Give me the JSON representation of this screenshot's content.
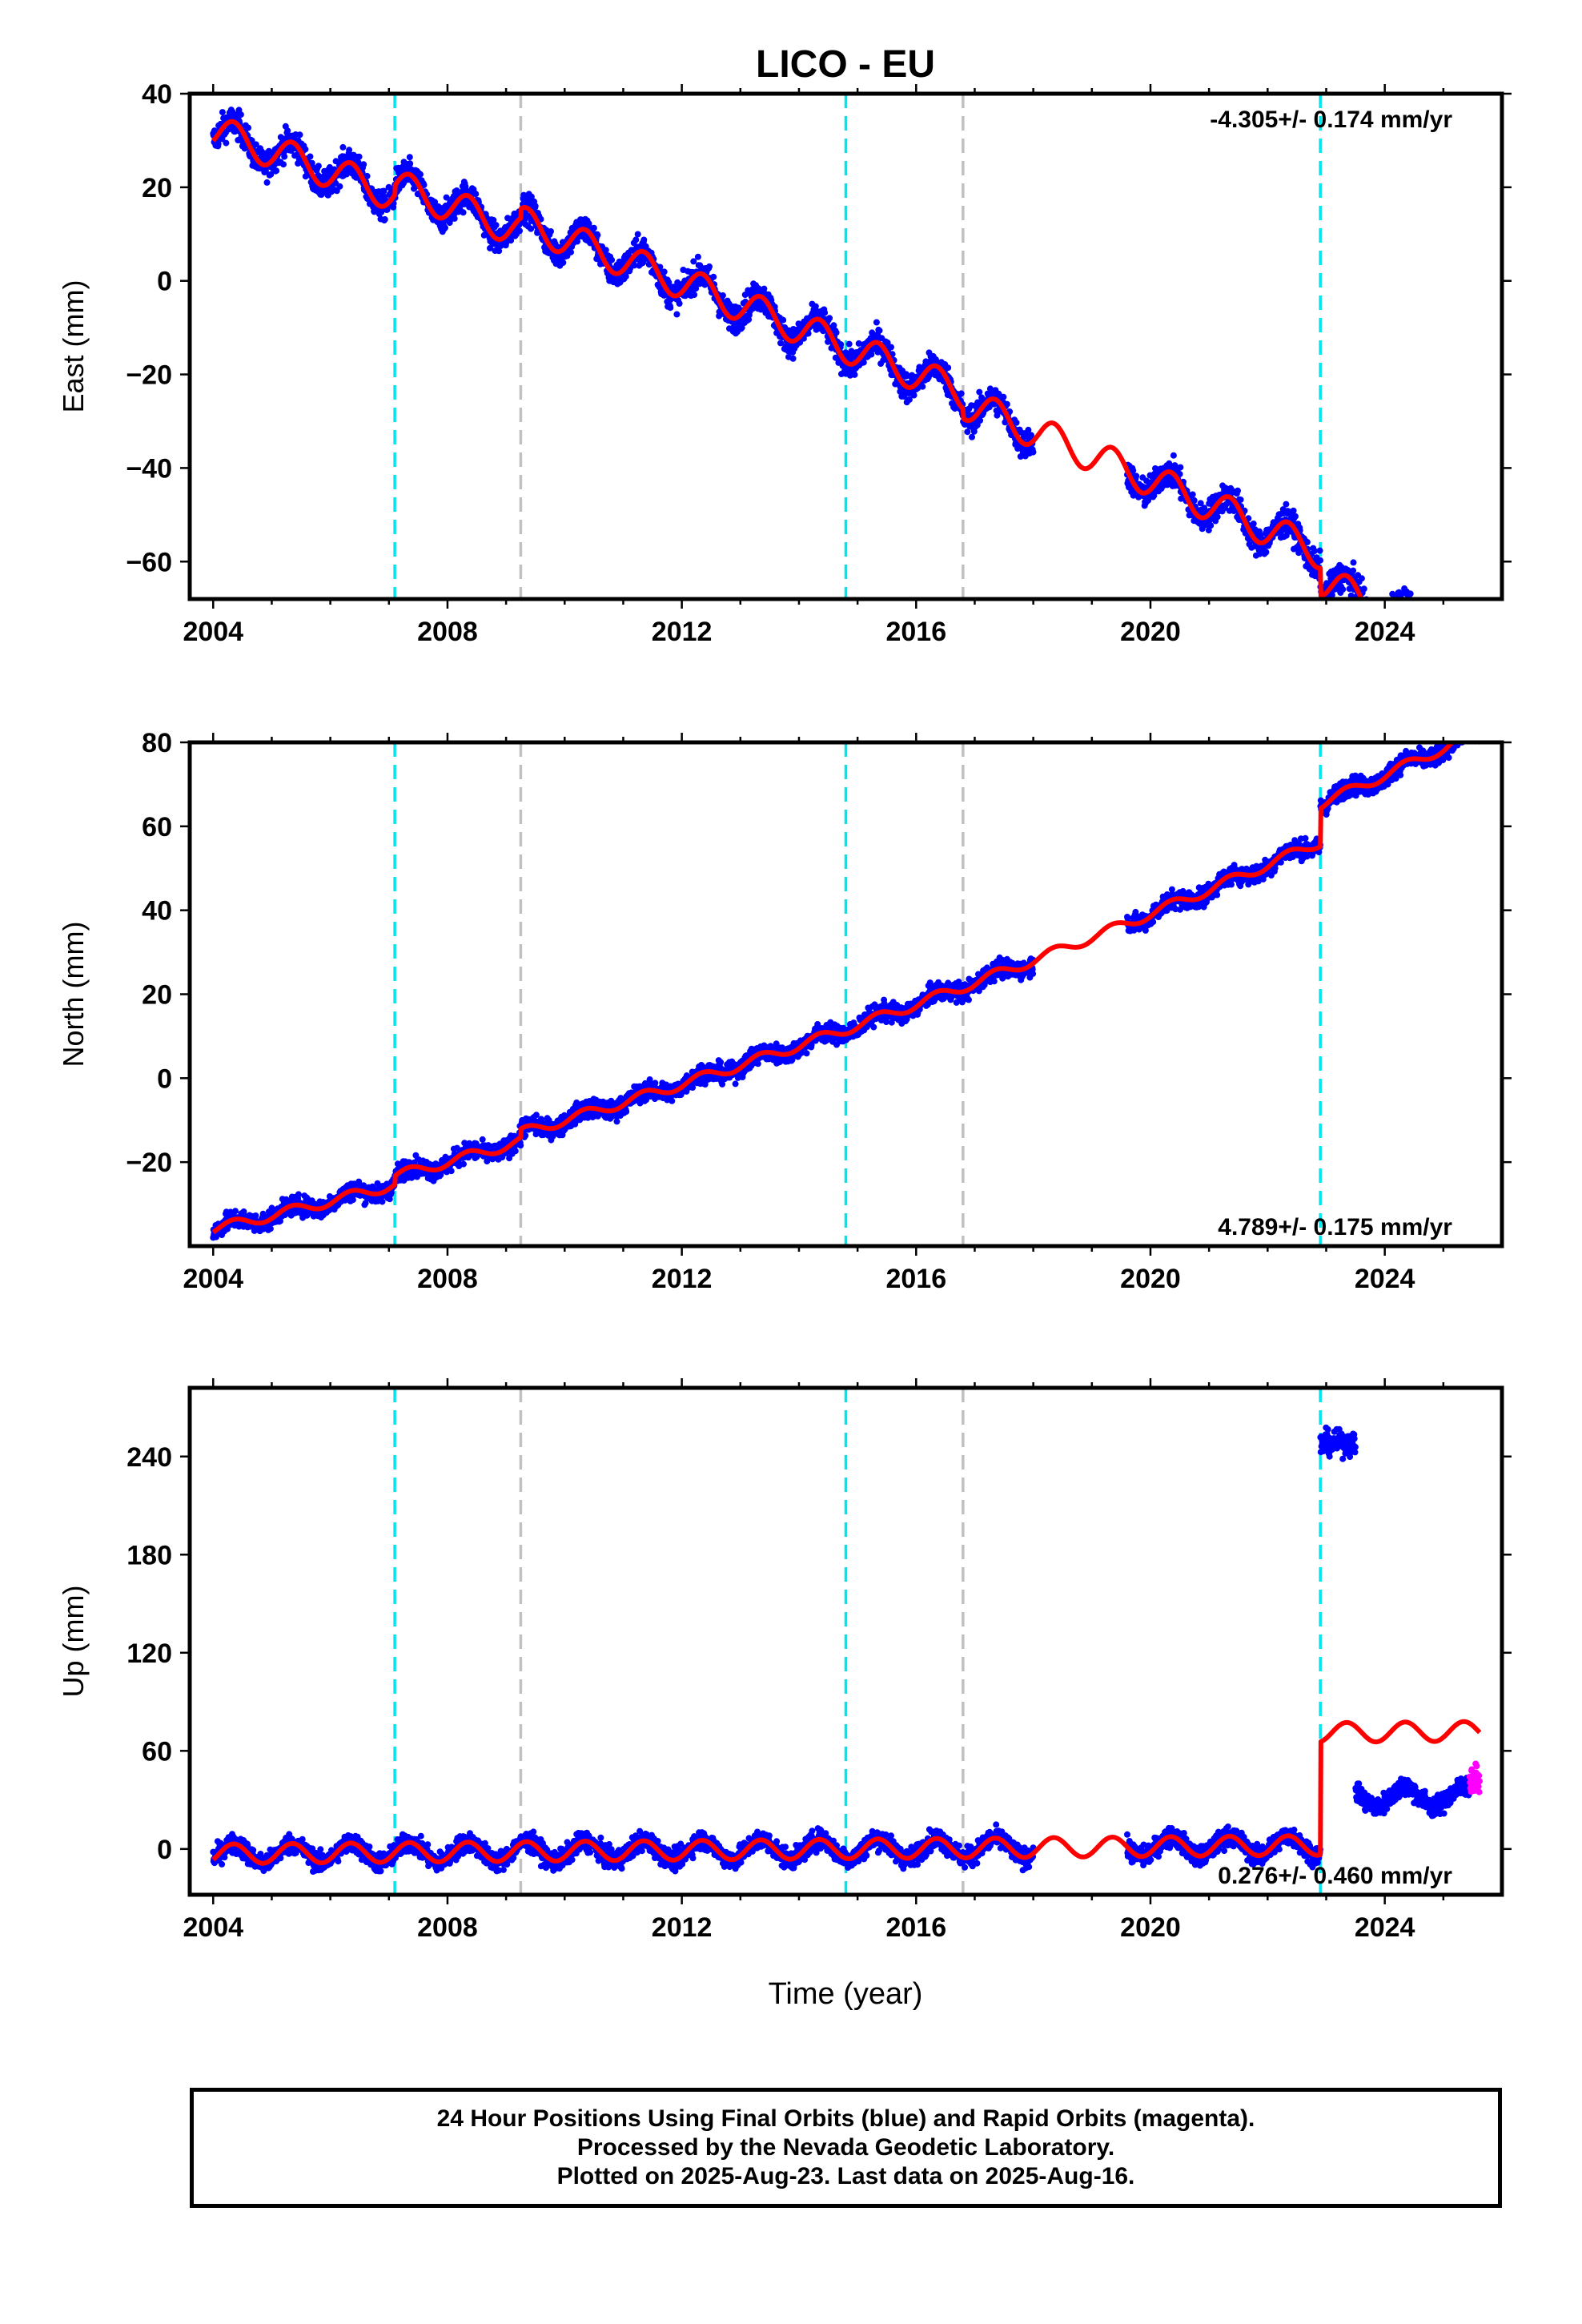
{
  "title": "LICO - EU",
  "x_axis_label": "Time (year)",
  "footer": [
    "24 Hour Positions Using Final Orbits (blue) and Rapid Orbits (magenta).",
    "Processed by the Nevada Geodetic Laboratory.",
    "Plotted on 2025-Aug-23. Last data on 2025-Aug-16."
  ],
  "colors": {
    "final_orbits": "#0000ff",
    "rapid_orbits": "#ff00ff",
    "model_fit": "#ff0000",
    "antenna_change_line": "#00e5ee",
    "equipment_change_line": "#c0c0c0"
  },
  "chart_data": [
    {
      "type": "scatter",
      "component": "East",
      "ylabel": "East (mm)",
      "xlim": [
        2003.6,
        2026.0
      ],
      "ylim": [
        -68,
        40
      ],
      "x_ticks": [
        2004,
        2008,
        2012,
        2016,
        2020,
        2024
      ],
      "y_ticks": [
        -60,
        -40,
        -20,
        0,
        20,
        40
      ],
      "y_tick_labels": [
        "−60",
        "−40",
        "−20",
        "0",
        "20",
        "40"
      ],
      "velocity_label": "-4.305+/- 0.174 mm/yr",
      "velocity_label_position": "top-right",
      "cyan_dashed_lines": [
        2007.1,
        2014.8,
        2022.9
      ],
      "grey_dashed_lines": [
        2009.25,
        2016.8
      ],
      "model": {
        "base": 32,
        "rate": -4.305,
        "curvature": -0.03,
        "annual_amplitude": 3.5,
        "offsets": [
          {
            "year": 2007.1,
            "step": 2
          },
          {
            "year": 2009.25,
            "step": 2
          },
          {
            "year": 2016.8,
            "step": -2
          },
          {
            "year": 2022.9,
            "step": -6
          }
        ]
      },
      "data_gap": [
        2018.0,
        2019.6
      ],
      "scatter_noise_mm": 3.0,
      "final_orbits_end": 2025.45,
      "rapid_orbits_end": 2025.62
    },
    {
      "type": "scatter",
      "component": "North",
      "ylabel": "North (mm)",
      "xlim": [
        2003.6,
        2026.0
      ],
      "ylim": [
        -40,
        80
      ],
      "x_ticks": [
        2004,
        2008,
        2012,
        2016,
        2020,
        2024
      ],
      "y_ticks": [
        -20,
        0,
        20,
        40,
        60,
        80
      ],
      "y_tick_labels": [
        "−20",
        "0",
        "20",
        "40",
        "60",
        "80"
      ],
      "velocity_label": "4.789+/- 0.175 mm/yr",
      "velocity_label_position": "bottom-right",
      "cyan_dashed_lines": [
        2007.1,
        2014.8,
        2022.9
      ],
      "grey_dashed_lines": [
        2009.25,
        2016.8
      ],
      "model": {
        "base": -36,
        "rate": 3.2,
        "curvature": 0.078,
        "annual_amplitude": 1.2,
        "offsets": [
          {
            "year": 2007.1,
            "step": 2
          },
          {
            "year": 2009.25,
            "step": 2
          },
          {
            "year": 2022.9,
            "step": 9
          }
        ]
      },
      "data_gap": [
        2018.0,
        2019.6
      ],
      "scatter_noise_mm": 2.2,
      "final_orbits_end": 2025.45,
      "rapid_orbits_end": 2025.62
    },
    {
      "type": "scatter",
      "component": "Up",
      "ylabel": "Up (mm)",
      "xlim": [
        2003.6,
        2026.0
      ],
      "ylim": [
        -28,
        282
      ],
      "x_ticks": [
        2004,
        2008,
        2012,
        2016,
        2020,
        2024
      ],
      "y_ticks": [
        0,
        60,
        120,
        180,
        240
      ],
      "y_tick_labels": [
        "0",
        "60",
        "120",
        "180",
        "240"
      ],
      "velocity_label": "0.276+/- 0.460 mm/yr",
      "velocity_label_position": "bottom-right",
      "cyan_dashed_lines": [
        2007.1,
        2014.8,
        2022.9
      ],
      "grey_dashed_lines": [
        2009.25,
        2016.8
      ],
      "model": {
        "base": -3,
        "rate": 0.276,
        "curvature": 0,
        "annual_amplitude": 6,
        "offsets": [
          {
            "year": 2022.9,
            "step": 69
          }
        ]
      },
      "outlier_cluster": {
        "x": [
          2022.9,
          2023.5
        ],
        "y_center": 248,
        "y_spread": 14
      },
      "post_offset_data_center": 32,
      "data_gap": [
        2018.0,
        2019.6
      ],
      "scatter_noise_mm": 6.0,
      "final_orbits_end": 2025.45,
      "rapid_orbits_end": 2025.62
    }
  ]
}
